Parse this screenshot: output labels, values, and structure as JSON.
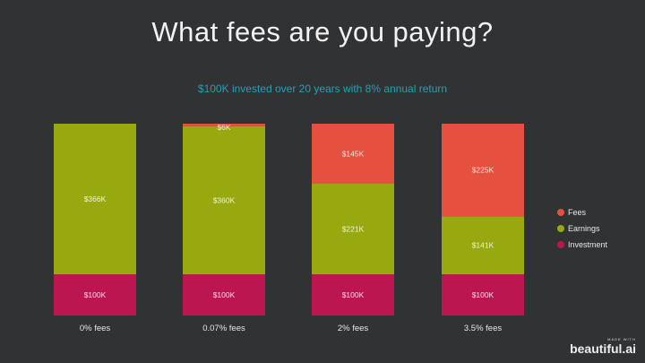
{
  "title": "What fees are you paying?",
  "subtitle": "$100K invested over 20 years with 8% annual return",
  "chart_data": {
    "type": "bar",
    "stacked": true,
    "categories": [
      "0% fees",
      "0.07% fees",
      "2% fees",
      "3.5% fees"
    ],
    "series": [
      {
        "name": "Investment",
        "color": "#bc1650",
        "values": [
          100,
          100,
          100,
          100
        ],
        "labels": [
          "$100K",
          "$100K",
          "$100K",
          "$100K"
        ]
      },
      {
        "name": "Earnings",
        "color": "#97a90f",
        "values": [
          366,
          360,
          221,
          141
        ],
        "labels": [
          "$366K",
          "$360K",
          "$221K",
          "$141K"
        ]
      },
      {
        "name": "Fees",
        "color": "#e5503f",
        "values": [
          0,
          6,
          145,
          225
        ],
        "labels": [
          "",
          "$6K",
          "$145K",
          "$225K"
        ]
      }
    ],
    "ylim": [
      0,
      466
    ],
    "grid": false,
    "legend_position": "right",
    "legend": [
      "Fees",
      "Earnings",
      "Investment"
    ]
  },
  "branding": {
    "made_with": "MADE WITH",
    "name": "beautiful.ai"
  }
}
